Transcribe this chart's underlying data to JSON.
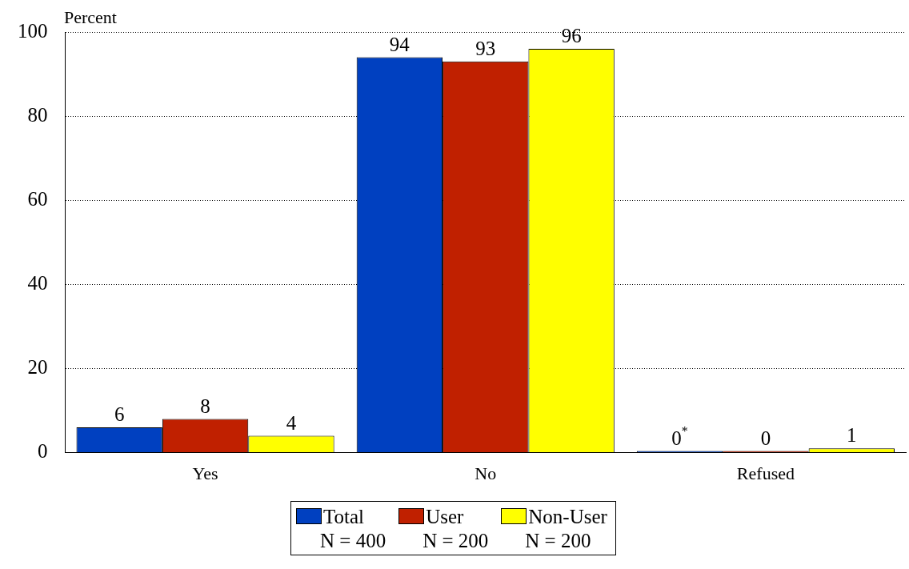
{
  "chart_data": {
    "type": "bar",
    "ylabel": "Percent",
    "categories": [
      "Yes",
      "No",
      "Refused"
    ],
    "series": [
      {
        "name": "Total",
        "color": "#0040c0",
        "values": [
          6,
          94,
          0
        ],
        "value_labels": [
          "6",
          "94",
          "0$^{*}$"
        ]
      },
      {
        "name": "User",
        "color": "#c02000",
        "values": [
          8,
          93,
          0
        ],
        "value_labels": [
          "8",
          "93",
          "0"
        ]
      },
      {
        "name": "Non-User",
        "color": "#ffff00",
        "values": [
          4,
          96,
          1
        ],
        "value_labels": [
          "4",
          "96",
          "1"
        ]
      }
    ],
    "ylim": [
      0,
      100
    ],
    "yticks": [
      0,
      20,
      40,
      60,
      80,
      100
    ],
    "grid": "y",
    "legend": "bottom",
    "annotations": [
      "N = 400",
      "N = 200",
      "N = 200"
    ]
  }
}
